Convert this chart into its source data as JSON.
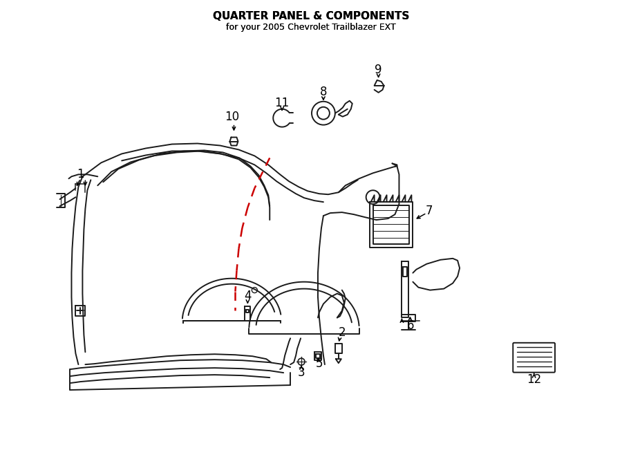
{
  "title": "QUARTER PANEL & COMPONENTS",
  "subtitle": "for your 2005 Chevrolet Trailblazer EXT",
  "background_color": "#ffffff",
  "line_color": "#1a1a1a",
  "red_dashed_color": "#cc0000",
  "title_fontsize": 11,
  "subtitle_fontsize": 9,
  "label_fontsize": 12,
  "figsize": [
    9.0,
    6.61
  ],
  "dpi": 100
}
